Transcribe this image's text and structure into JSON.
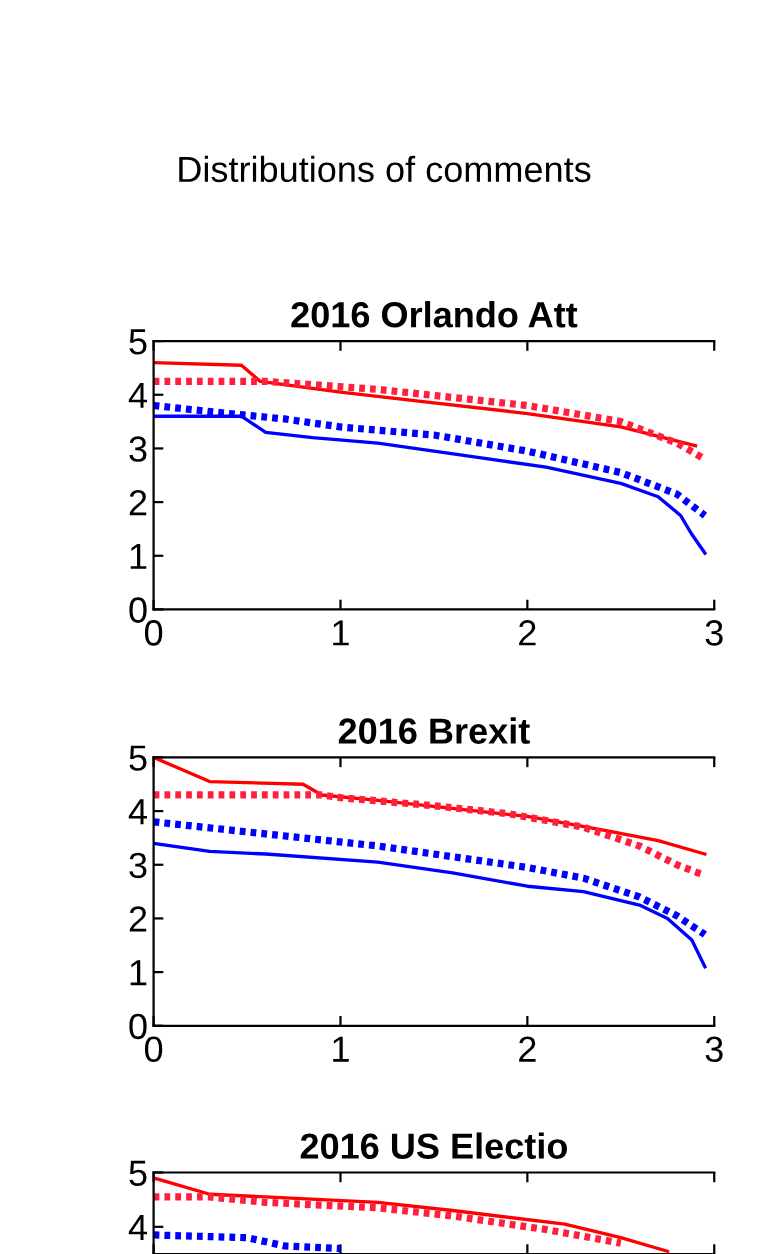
{
  "chart_data": [
    {
      "type": "line",
      "title": "2016 Orlando Att",
      "annotations": [
        "Distributions of comments"
      ],
      "xlim": [
        0,
        3
      ],
      "xticks": [
        0,
        1,
        2,
        3
      ],
      "ylim": [
        0,
        5
      ],
      "yticks": [
        0,
        1,
        2,
        3,
        4,
        5
      ],
      "grid": false,
      "legend": false,
      "series": [
        {
          "color": "#ff0000",
          "line_style": "solid",
          "x": [
            0,
            0.47,
            0.57,
            1,
            1.5,
            2,
            2.5,
            2.9
          ],
          "values": [
            4.6,
            4.55,
            4.25,
            4.05,
            3.85,
            3.65,
            3.4,
            3.05
          ]
        },
        {
          "color": "#ff2040",
          "line_style": "dotted",
          "x": [
            0,
            0.6,
            0.8,
            1.2,
            1.6,
            2,
            2.5,
            2.8,
            2.95
          ],
          "values": [
            4.25,
            4.25,
            4.2,
            4.1,
            3.95,
            3.8,
            3.5,
            3.1,
            2.8
          ]
        },
        {
          "color": "#0000ff",
          "line_style": "dotted",
          "x": [
            0,
            0.4,
            0.7,
            1,
            1.5,
            2,
            2.5,
            2.8,
            2.95
          ],
          "values": [
            3.8,
            3.65,
            3.55,
            3.4,
            3.25,
            2.95,
            2.55,
            2.15,
            1.75
          ]
        },
        {
          "color": "#0000ff",
          "line_style": "solid",
          "x": [
            0,
            0.47,
            0.6,
            0.85,
            1.2,
            1.5,
            1.8,
            2.1,
            2.5,
            2.7,
            2.82,
            2.88,
            2.95
          ],
          "values": [
            3.6,
            3.6,
            3.3,
            3.2,
            3.1,
            2.95,
            2.8,
            2.65,
            2.35,
            2.1,
            1.75,
            1.4,
            1.05
          ]
        }
      ]
    },
    {
      "type": "line",
      "title": "2016 Brexit",
      "xlim": [
        0,
        3
      ],
      "xticks": [
        0,
        1,
        2,
        3
      ],
      "ylim": [
        0,
        5
      ],
      "yticks": [
        0,
        1,
        2,
        3,
        4,
        5
      ],
      "grid": false,
      "legend": false,
      "series": [
        {
          "color": "#ff0000",
          "line_style": "solid",
          "x": [
            0,
            0.3,
            0.8,
            0.9,
            1.2,
            2,
            2.4,
            2.7,
            2.95
          ],
          "values": [
            5.0,
            4.55,
            4.5,
            4.3,
            4.2,
            3.9,
            3.65,
            3.45,
            3.2
          ]
        },
        {
          "color": "#ff2040",
          "line_style": "dotted",
          "x": [
            0,
            0.9,
            1.0,
            1.5,
            1.9,
            2.3,
            2.6,
            2.8,
            2.95
          ],
          "values": [
            4.3,
            4.3,
            4.25,
            4.1,
            3.95,
            3.7,
            3.35,
            3.0,
            2.8
          ]
        },
        {
          "color": "#0000ff",
          "line_style": "dotted",
          "x": [
            0,
            0.4,
            0.8,
            1.2,
            1.6,
            2,
            2.3,
            2.6,
            2.8,
            2.95
          ],
          "values": [
            3.8,
            3.65,
            3.5,
            3.35,
            3.15,
            2.95,
            2.75,
            2.4,
            2.05,
            1.7
          ]
        },
        {
          "color": "#0000ff",
          "line_style": "solid",
          "x": [
            0,
            0.3,
            0.6,
            1.2,
            1.6,
            2.0,
            2.3,
            2.6,
            2.75,
            2.88,
            2.95
          ],
          "values": [
            3.4,
            3.25,
            3.2,
            3.05,
            2.85,
            2.6,
            2.5,
            2.25,
            2.0,
            1.6,
            1.1
          ]
        }
      ]
    },
    {
      "type": "line",
      "title": "2016 US Electio",
      "xlim": [
        0,
        3
      ],
      "xticks": [
        0,
        1,
        2,
        3
      ],
      "ylim": [
        3.5,
        5
      ],
      "yticks": [
        4,
        5
      ],
      "tick_labels": "y",
      "grid": false,
      "legend": false,
      "series": [
        {
          "color": "#ff0000",
          "line_style": "solid",
          "x": [
            0,
            0.3,
            0.6,
            1.2,
            1.6,
            2.2,
            2.5,
            2.75
          ],
          "values": [
            4.9,
            4.6,
            4.55,
            4.45,
            4.3,
            4.05,
            3.8,
            3.55
          ]
        },
        {
          "color": "#ff2040",
          "line_style": "dotted",
          "x": [
            0,
            0.3,
            0.6,
            1.2,
            1.6,
            2.1,
            2.5
          ],
          "values": [
            4.55,
            4.55,
            4.45,
            4.35,
            4.2,
            3.95,
            3.7
          ]
        },
        {
          "color": "#0000ff",
          "line_style": "dotted",
          "x": [
            0,
            0.5,
            0.7,
            1.0
          ],
          "values": [
            3.85,
            3.8,
            3.65,
            3.6
          ]
        }
      ]
    }
  ]
}
